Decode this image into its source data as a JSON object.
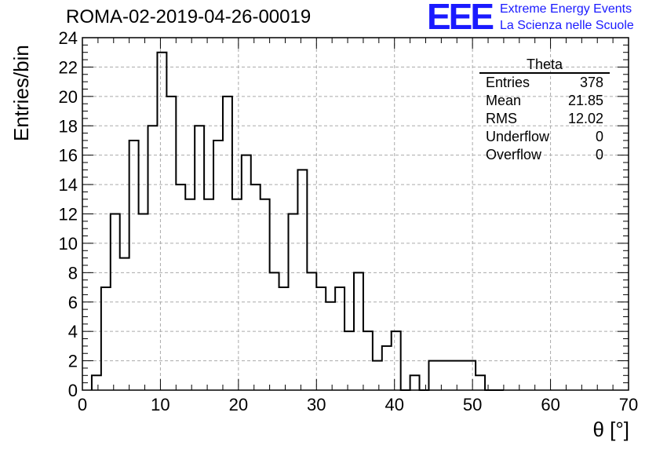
{
  "header": {
    "title": "ROMA-02-2019-04-26-00019",
    "logo_mark": "EEE",
    "logo_line1": "Extreme Energy Events",
    "logo_line2": "La Scienza nelle Scuole",
    "logo_color": "#1a1aff"
  },
  "stats_box": {
    "name": "Theta",
    "rows": [
      {
        "label": "Entries",
        "value": "378"
      },
      {
        "label": "Mean",
        "value": "21.85"
      },
      {
        "label": "RMS",
        "value": "12.02"
      },
      {
        "label": "Underflow",
        "value": "0"
      },
      {
        "label": "Overflow",
        "value": "0"
      }
    ]
  },
  "chart_data": {
    "type": "bar",
    "histogram": true,
    "xlabel": "θ [°]",
    "ylabel": "Entries/bin",
    "xlim": [
      0,
      70
    ],
    "ylim": [
      0,
      24
    ],
    "grid": true,
    "bin_width": 1.2,
    "bin_start": 1.2,
    "values": [
      1,
      7,
      12,
      9,
      17,
      12,
      18,
      23,
      20,
      14,
      13,
      18,
      13,
      17,
      20,
      13,
      16,
      14,
      13,
      8,
      7,
      12,
      15,
      8,
      7,
      6,
      7,
      4,
      8,
      4,
      2,
      3,
      4,
      0,
      1,
      0,
      2,
      2,
      2,
      2,
      2,
      1,
      0,
      0
    ],
    "x_ticks": [
      0,
      10,
      20,
      30,
      40,
      50,
      60,
      70
    ],
    "y_ticks": [
      0,
      2,
      4,
      6,
      8,
      10,
      12,
      14,
      16,
      18,
      20,
      22,
      24
    ]
  }
}
